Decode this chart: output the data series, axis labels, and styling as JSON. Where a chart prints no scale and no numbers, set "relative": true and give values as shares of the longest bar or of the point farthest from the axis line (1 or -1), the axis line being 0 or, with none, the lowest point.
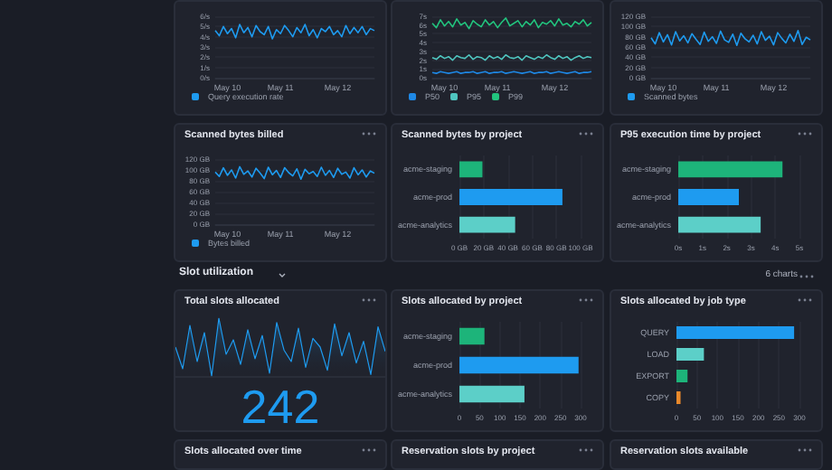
{
  "chart_data": [
    {
      "type": "line",
      "categories": [
        null,
        null,
        null,
        "May 10",
        null,
        null,
        null,
        null,
        null,
        null,
        null,
        null,
        null,
        null,
        null,
        null,
        "May 11",
        null,
        null,
        null,
        null,
        null,
        null,
        null,
        null,
        null,
        null,
        null,
        null,
        null,
        "May 12",
        null,
        null,
        null,
        null,
        null,
        null,
        null,
        null,
        null
      ],
      "ylim": [
        0,
        6
      ],
      "yticks": [
        {
          "value": 0,
          "label": "0/s"
        },
        {
          "value": 1,
          "label": "1/s"
        },
        {
          "value": 2,
          "label": "2/s"
        },
        {
          "value": 3,
          "label": "3/s"
        },
        {
          "value": 4,
          "label": "4/s"
        },
        {
          "value": 5,
          "label": "5/s"
        },
        {
          "value": 6,
          "label": "6/s"
        }
      ],
      "grid": "y",
      "legend": "bottom left",
      "marker": "none",
      "line_style": "solid",
      "series": [
        {
          "name": "Query execution rate",
          "color": "#1e9bf0",
          "values": [
            4.6,
            4.1,
            5.0,
            4.3,
            4.8,
            3.9,
            5.2,
            4.4,
            4.9,
            4.0,
            5.1,
            4.5,
            4.2,
            5.0,
            3.8,
            4.7,
            4.3,
            5.1,
            4.6,
            4.0,
            4.9,
            4.4,
            5.2,
            4.1,
            4.7,
            3.9,
            4.8,
            4.5,
            5.0,
            4.2,
            4.6,
            4.0,
            5.1,
            4.3,
            4.9,
            4.4,
            5.0,
            4.2,
            4.8,
            4.6
          ]
        }
      ]
    },
    {
      "type": "line",
      "categories": [
        null,
        null,
        null,
        "May 10",
        null,
        null,
        null,
        null,
        null,
        null,
        null,
        null,
        null,
        null,
        null,
        null,
        "May 11",
        null,
        null,
        null,
        null,
        null,
        null,
        null,
        null,
        null,
        null,
        null,
        null,
        null,
        "May 12",
        null,
        null,
        null,
        null,
        null,
        null,
        null,
        null,
        null
      ],
      "ylim": [
        0,
        7
      ],
      "yticks": [
        {
          "value": 0,
          "label": "0s"
        },
        {
          "value": 1,
          "label": "1s"
        },
        {
          "value": 2,
          "label": "2s"
        },
        {
          "value": 3,
          "label": "3s"
        },
        {
          "value": 4,
          "label": "4s"
        },
        {
          "value": 5,
          "label": "5s"
        },
        {
          "value": 6,
          "label": "6s"
        },
        {
          "value": 7,
          "label": "7s"
        }
      ],
      "grid": "y",
      "legend": "bottom left",
      "marker": "none",
      "line_style": "solid",
      "series": [
        {
          "name": "P50",
          "color": "#1e88e5",
          "values": [
            0.6,
            0.5,
            0.7,
            0.6,
            0.5,
            0.6,
            0.7,
            0.5,
            0.6,
            0.6,
            0.7,
            0.5,
            0.6,
            0.7,
            0.5,
            0.6,
            0.6,
            0.7,
            0.5,
            0.6,
            0.7,
            0.6,
            0.5,
            0.6,
            0.7,
            0.5,
            0.6,
            0.6,
            0.7,
            0.5,
            0.6,
            0.7,
            0.6,
            0.5,
            0.6,
            0.7,
            0.5,
            0.6,
            0.6,
            0.7
          ]
        },
        {
          "name": "P95",
          "color": "#4fc6c0",
          "values": [
            2.3,
            2.1,
            2.5,
            2.2,
            2.4,
            2.0,
            2.5,
            2.3,
            2.2,
            2.6,
            2.1,
            2.4,
            2.3,
            2.0,
            2.5,
            2.2,
            2.4,
            2.1,
            2.6,
            2.3,
            2.2,
            2.4,
            2.0,
            2.5,
            2.3,
            2.1,
            2.4,
            2.2,
            2.6,
            2.3,
            2.1,
            2.5,
            2.2,
            2.4,
            2.0,
            2.3,
            2.5,
            2.2,
            2.4,
            2.3
          ]
        },
        {
          "name": "P99",
          "color": "#22c47e",
          "values": [
            6.2,
            5.7,
            6.6,
            5.9,
            6.4,
            5.8,
            6.7,
            6.0,
            6.3,
            5.6,
            6.5,
            6.1,
            5.8,
            6.6,
            6.0,
            6.4,
            5.7,
            6.3,
            6.8,
            5.9,
            6.2,
            6.5,
            5.8,
            6.4,
            6.0,
            6.6,
            5.7,
            6.3,
            6.1,
            6.5,
            5.9,
            6.7,
            6.0,
            6.2,
            5.8,
            6.4,
            6.1,
            6.6,
            5.9,
            6.3
          ]
        }
      ]
    },
    {
      "type": "line",
      "categories": [
        null,
        null,
        null,
        "May 10",
        null,
        null,
        null,
        null,
        null,
        null,
        null,
        null,
        null,
        null,
        null,
        null,
        "May 11",
        null,
        null,
        null,
        null,
        null,
        null,
        null,
        null,
        null,
        null,
        null,
        null,
        null,
        "May 12",
        null,
        null,
        null,
        null,
        null,
        null,
        null,
        null,
        null
      ],
      "ylim": [
        0,
        120
      ],
      "yticks": [
        {
          "value": 0,
          "label": "0 GB"
        },
        {
          "value": 20,
          "label": "20 GB"
        },
        {
          "value": 40,
          "label": "40 GB"
        },
        {
          "value": 60,
          "label": "60 GB"
        },
        {
          "value": 80,
          "label": "80 GB"
        },
        {
          "value": 100,
          "label": "100 GB"
        },
        {
          "value": 120,
          "label": "120 GB"
        }
      ],
      "grid": "y",
      "legend": "bottom left",
      "marker": "none",
      "line_style": "solid",
      "series": [
        {
          "name": "Scanned bytes",
          "color": "#1e9bf0",
          "values": [
            78,
            66,
            88,
            70,
            84,
            64,
            90,
            72,
            82,
            68,
            86,
            75,
            65,
            89,
            71,
            80,
            67,
            91,
            74,
            69,
            85,
            63,
            87,
            76,
            70,
            83,
            66,
            90,
            73,
            81,
            64,
            88,
            77,
            68,
            85,
            71,
            92,
            65,
            79,
            74
          ]
        }
      ]
    },
    {
      "type": "line",
      "title": "Scanned bytes billed",
      "categories": [
        null,
        null,
        null,
        "May 10",
        null,
        null,
        null,
        null,
        null,
        null,
        null,
        null,
        null,
        null,
        null,
        null,
        "May 11",
        null,
        null,
        null,
        null,
        null,
        null,
        null,
        null,
        null,
        null,
        null,
        null,
        null,
        "May 12",
        null,
        null,
        null,
        null,
        null,
        null,
        null,
        null,
        null
      ],
      "ylim": [
        0,
        120
      ],
      "yticks": [
        {
          "value": 0,
          "label": "0 GB"
        },
        {
          "value": 20,
          "label": "20 GB"
        },
        {
          "value": 40,
          "label": "40 GB"
        },
        {
          "value": 60,
          "label": "60 GB"
        },
        {
          "value": 80,
          "label": "80 GB"
        },
        {
          "value": 100,
          "label": "100 GB"
        },
        {
          "value": 120,
          "label": "120 GB"
        }
      ],
      "grid": "y",
      "legend": "bottom left",
      "marker": "none",
      "line_style": "solid",
      "series": [
        {
          "name": "Bytes billed",
          "color": "#1e9bf0",
          "values": [
            96,
            88,
            104,
            90,
            100,
            85,
            106,
            92,
            98,
            87,
            103,
            94,
            84,
            105,
            91,
            99,
            86,
            104,
            95,
            89,
            102,
            83,
            101,
            93,
            97,
            88,
            105,
            90,
            99,
            86,
            103,
            92,
            96,
            85,
            104,
            91,
            100,
            87,
            98,
            94
          ]
        }
      ]
    },
    {
      "type": "bar",
      "orientation": "horizontal",
      "title": "Scanned bytes by project",
      "categories": [
        "acme-staging",
        "acme-prod",
        "acme-analytics"
      ],
      "values": [
        19,
        85,
        46
      ],
      "colors": [
        "#1db47a",
        "#1e9bf0",
        "#5ccfc8"
      ],
      "xlim": [
        0,
        100
      ],
      "xticks": [
        {
          "value": 0,
          "label": "0 GB"
        },
        {
          "value": 20,
          "label": "20 GB"
        },
        {
          "value": 40,
          "label": "40 GB"
        },
        {
          "value": 60,
          "label": "60 GB"
        },
        {
          "value": 80,
          "label": "80 GB"
        },
        {
          "value": 100,
          "label": "100 GB"
        }
      ],
      "grid": "x"
    },
    {
      "type": "bar",
      "orientation": "horizontal",
      "title": "P95 execution time by project",
      "categories": [
        "acme-staging",
        "acme-prod",
        "acme-analytics"
      ],
      "values": [
        4.3,
        2.5,
        3.4
      ],
      "colors": [
        "#1db47a",
        "#1e9bf0",
        "#5ccfc8"
      ],
      "xlim": [
        0,
        5
      ],
      "xticks": [
        {
          "value": 0,
          "label": "0s"
        },
        {
          "value": 1,
          "label": "1s"
        },
        {
          "value": 2,
          "label": "2s"
        },
        {
          "value": 3,
          "label": "3s"
        },
        {
          "value": 4,
          "label": "4s"
        },
        {
          "value": 5,
          "label": "5s"
        }
      ],
      "grid": "x"
    },
    {
      "type": "other",
      "title": "Slot utilization",
      "annotations": [
        "6 charts"
      ]
    },
    {
      "type": "area",
      "title": "Total slots allocated",
      "relative": true,
      "color": "#1e9bf0",
      "categories": [
        null,
        null,
        null,
        null,
        null,
        null,
        null,
        null,
        null,
        null,
        null,
        null,
        null,
        null,
        null,
        null,
        null,
        null,
        null,
        null,
        null,
        null,
        null,
        null,
        null,
        null,
        null,
        null,
        null,
        null
      ],
      "values": [
        0.5,
        0.125,
        0.875,
        0.25,
        0.75,
        0,
        1,
        0.375,
        0.625,
        0.2,
        0.8,
        0.3,
        0.7,
        0.05,
        0.925,
        0.45,
        0.25,
        0.825,
        0.15,
        0.65,
        0.5,
        0.1,
        0.9,
        0.35,
        0.75,
        0.225,
        0.6,
        0.025,
        0.85,
        0.425
      ],
      "annotations": [
        "242"
      ]
    },
    {
      "type": "bar",
      "orientation": "horizontal",
      "title": "Slots allocated by project",
      "categories": [
        "acme-staging",
        "acme-prod",
        "acme-analytics"
      ],
      "values": [
        62,
        295,
        161
      ],
      "colors": [
        "#1db47a",
        "#1e9bf0",
        "#5ccfc8"
      ],
      "xlim": [
        0,
        300
      ],
      "xticks": [
        0,
        50,
        100,
        150,
        200,
        250,
        300
      ],
      "grid": "x"
    },
    {
      "type": "bar",
      "orientation": "horizontal",
      "title": "Slots allocated by job type",
      "categories": [
        "QUERY",
        "LOAD",
        "EXPORT",
        "COPY"
      ],
      "values": [
        287,
        67,
        27,
        10
      ],
      "colors": [
        "#1e9bf0",
        "#5ccfc8",
        "#1db47a",
        "#e8892b"
      ],
      "xlim": [
        0,
        300
      ],
      "xticks": [
        0,
        50,
        100,
        150,
        200,
        250,
        300
      ],
      "grid": "x"
    },
    {
      "type": "other",
      "title": "Slots allocated over time"
    },
    {
      "type": "other",
      "title": "Reservation slots by project"
    },
    {
      "type": "other",
      "title": "Reservation slots available"
    }
  ]
}
